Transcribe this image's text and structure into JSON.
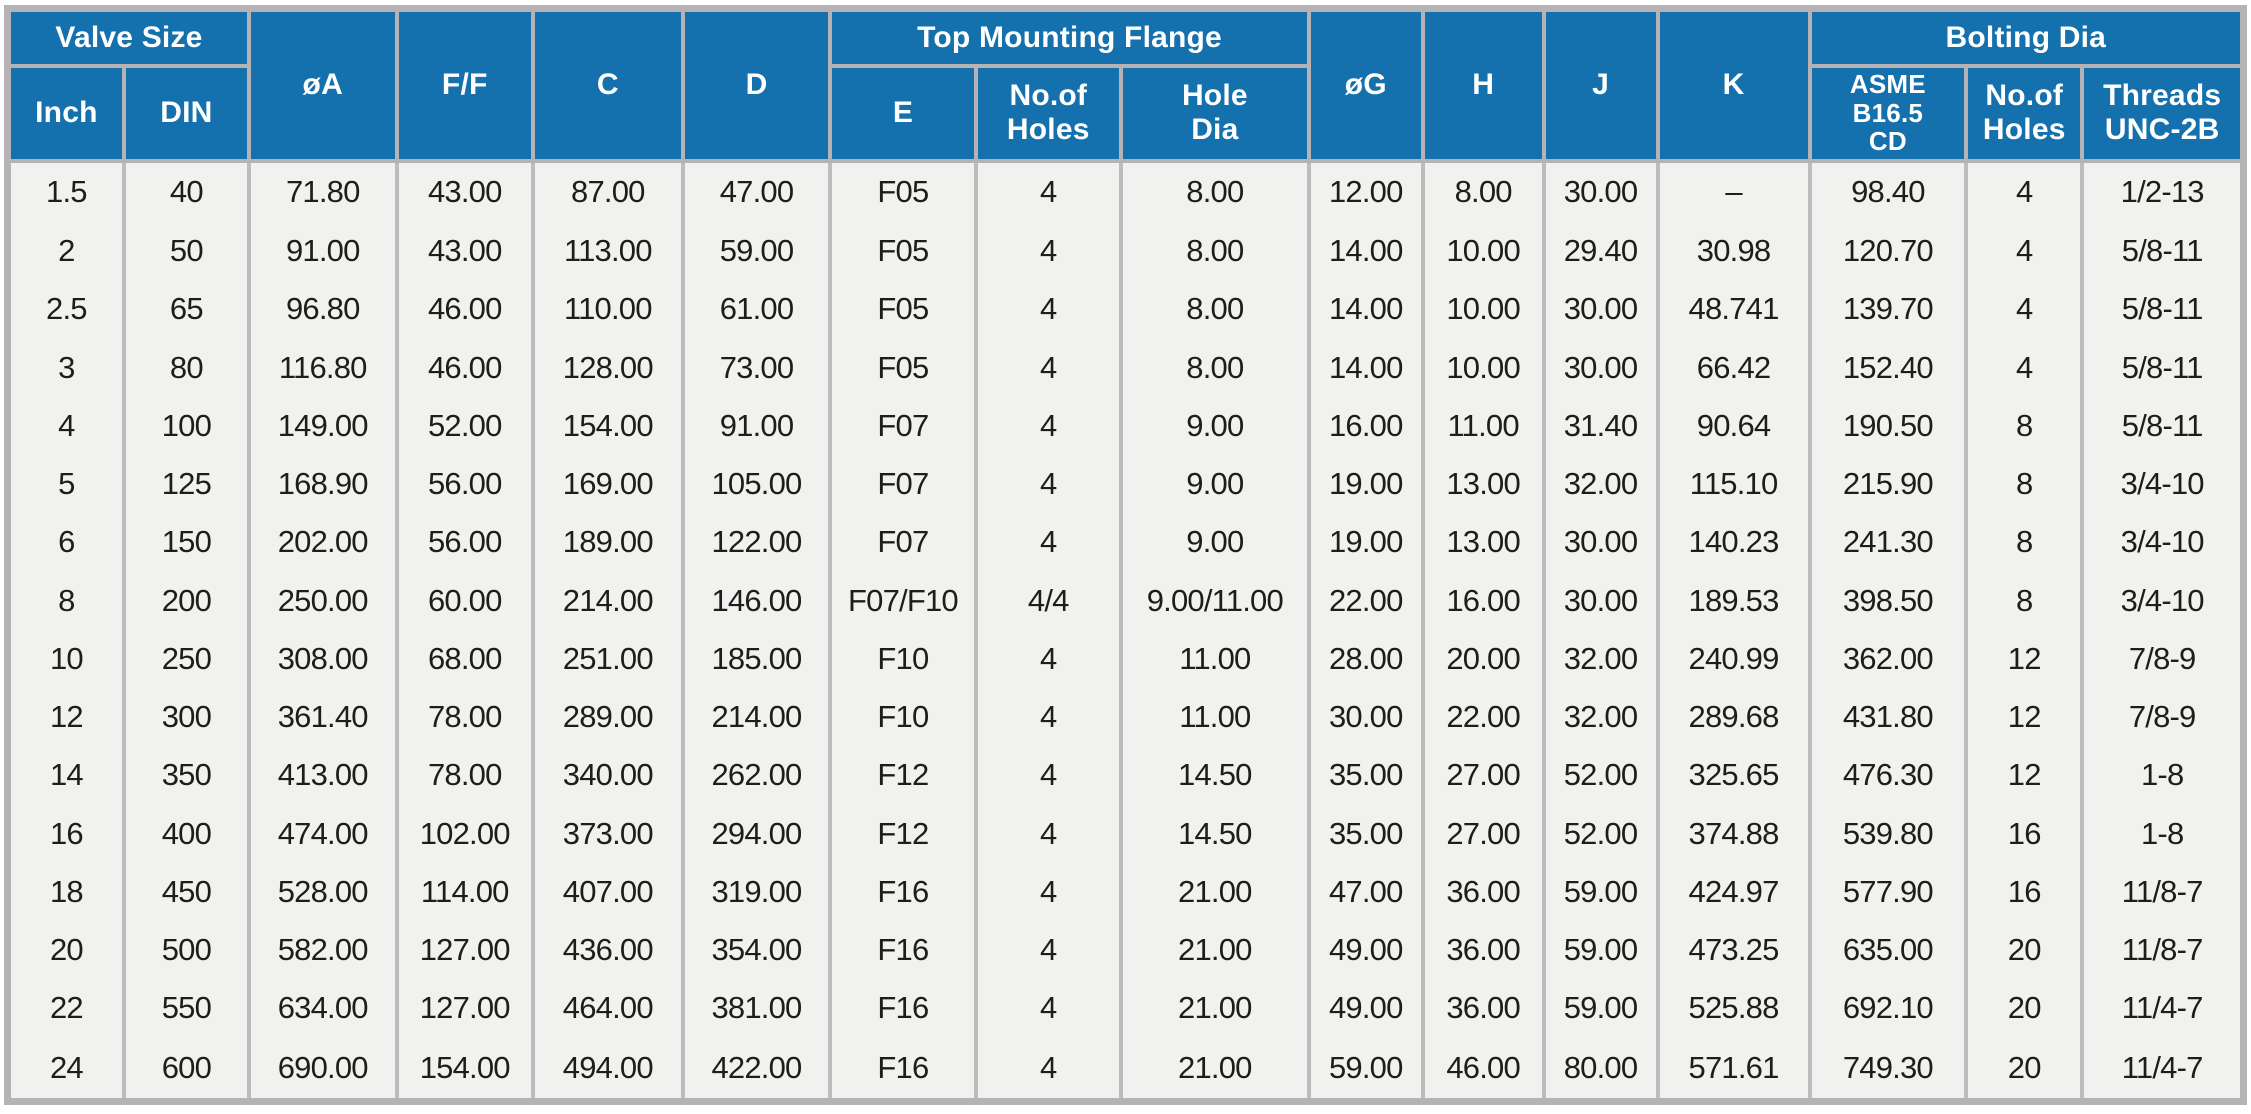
{
  "table": {
    "colors": {
      "header_bg": "#1571ad",
      "header_text": "#ffffff",
      "grid": "#b5b3b3",
      "cell_bg": "#f1f1f0",
      "body_text": "#1d1d1b"
    },
    "header": {
      "valve_size_group": "Valve Size",
      "inch": "Inch",
      "din": "DIN",
      "dia_a": "øA",
      "f_f": "F/F",
      "c": "C",
      "d": "D",
      "top_mounting_flange_group": "Top Mounting Flange",
      "e": "E",
      "tmf_no_of_holes": "No.of\nHoles",
      "hole_dia": "Hole\nDia",
      "dia_g": "øG",
      "h": "H",
      "j": "J",
      "k": "K",
      "bolting_dia_group": "Bolting Dia",
      "asme_cd": "ASME\nB16.5\nCD",
      "bolt_no_of_holes": "No.of\nHoles",
      "threads": "Threads\nUNC-2B"
    },
    "columns": [
      "Inch",
      "DIN",
      "øA",
      "F/F",
      "C",
      "D",
      "E",
      "No.of Holes",
      "Hole Dia",
      "øG",
      "H",
      "J",
      "K",
      "ASME B16.5 CD",
      "No.of Holes",
      "Threads UNC-2B"
    ],
    "rows": [
      [
        "1.5",
        "40",
        "71.80",
        "43.00",
        "87.00",
        "47.00",
        "F05",
        "4",
        "8.00",
        "12.00",
        "8.00",
        "30.00",
        "–",
        "98.40",
        "4",
        "1/2-13"
      ],
      [
        "2",
        "50",
        "91.00",
        "43.00",
        "113.00",
        "59.00",
        "F05",
        "4",
        "8.00",
        "14.00",
        "10.00",
        "29.40",
        "30.98",
        "120.70",
        "4",
        "5/8-11"
      ],
      [
        "2.5",
        "65",
        "96.80",
        "46.00",
        "110.00",
        "61.00",
        "F05",
        "4",
        "8.00",
        "14.00",
        "10.00",
        "30.00",
        "48.741",
        "139.70",
        "4",
        "5/8-11"
      ],
      [
        "3",
        "80",
        "116.80",
        "46.00",
        "128.00",
        "73.00",
        "F05",
        "4",
        "8.00",
        "14.00",
        "10.00",
        "30.00",
        "66.42",
        "152.40",
        "4",
        "5/8-11"
      ],
      [
        "4",
        "100",
        "149.00",
        "52.00",
        "154.00",
        "91.00",
        "F07",
        "4",
        "9.00",
        "16.00",
        "11.00",
        "31.40",
        "90.64",
        "190.50",
        "8",
        "5/8-11"
      ],
      [
        "5",
        "125",
        "168.90",
        "56.00",
        "169.00",
        "105.00",
        "F07",
        "4",
        "9.00",
        "19.00",
        "13.00",
        "32.00",
        "115.10",
        "215.90",
        "8",
        "3/4-10"
      ],
      [
        "6",
        "150",
        "202.00",
        "56.00",
        "189.00",
        "122.00",
        "F07",
        "4",
        "9.00",
        "19.00",
        "13.00",
        "30.00",
        "140.23",
        "241.30",
        "8",
        "3/4-10"
      ],
      [
        "8",
        "200",
        "250.00",
        "60.00",
        "214.00",
        "146.00",
        "F07/F10",
        "4/4",
        "9.00/11.00",
        "22.00",
        "16.00",
        "30.00",
        "189.53",
        "398.50",
        "8",
        "3/4-10"
      ],
      [
        "10",
        "250",
        "308.00",
        "68.00",
        "251.00",
        "185.00",
        "F10",
        "4",
        "11.00",
        "28.00",
        "20.00",
        "32.00",
        "240.99",
        "362.00",
        "12",
        "7/8-9"
      ],
      [
        "12",
        "300",
        "361.40",
        "78.00",
        "289.00",
        "214.00",
        "F10",
        "4",
        "11.00",
        "30.00",
        "22.00",
        "32.00",
        "289.68",
        "431.80",
        "12",
        "7/8-9"
      ],
      [
        "14",
        "350",
        "413.00",
        "78.00",
        "340.00",
        "262.00",
        "F12",
        "4",
        "14.50",
        "35.00",
        "27.00",
        "52.00",
        "325.65",
        "476.30",
        "12",
        "1-8"
      ],
      [
        "16",
        "400",
        "474.00",
        "102.00",
        "373.00",
        "294.00",
        "F12",
        "4",
        "14.50",
        "35.00",
        "27.00",
        "52.00",
        "374.88",
        "539.80",
        "16",
        "1-8"
      ],
      [
        "18",
        "450",
        "528.00",
        "114.00",
        "407.00",
        "319.00",
        "F16",
        "4",
        "21.00",
        "47.00",
        "36.00",
        "59.00",
        "424.97",
        "577.90",
        "16",
        "11/8-7"
      ],
      [
        "20",
        "500",
        "582.00",
        "127.00",
        "436.00",
        "354.00",
        "F16",
        "4",
        "21.00",
        "49.00",
        "36.00",
        "59.00",
        "473.25",
        "635.00",
        "20",
        "11/8-7"
      ],
      [
        "22",
        "550",
        "634.00",
        "127.00",
        "464.00",
        "381.00",
        "F16",
        "4",
        "21.00",
        "49.00",
        "36.00",
        "59.00",
        "525.88",
        "692.10",
        "20",
        "11/4-7"
      ],
      [
        "24",
        "600",
        "690.00",
        "154.00",
        "494.00",
        "422.00",
        "F16",
        "4",
        "21.00",
        "59.00",
        "46.00",
        "80.00",
        "571.61",
        "749.30",
        "20",
        "11/4-7"
      ]
    ]
  }
}
